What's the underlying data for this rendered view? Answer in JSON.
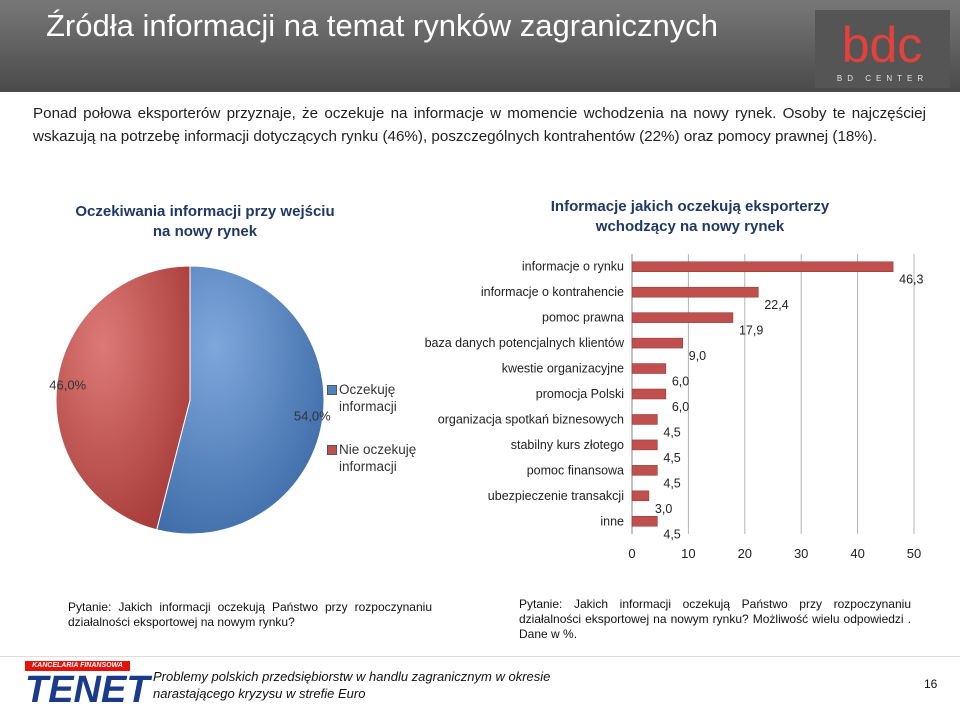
{
  "title": "Źródła informacji na temat rynków zagranicznych",
  "logo": {
    "main": "bdc",
    "sub": "BD CENTER"
  },
  "intro": "Ponad połowa eksporterów przyznaje, że oczekuje na informacje w momencie wchodzenia na nowy rynek. Osoby te najczęściej wskazują na potrzebę informacji dotyczących rynku (46%), poszczególnych kontrahentów (22%) oraz pomocy prawnej (18%).",
  "chart_data": [
    {
      "type": "pie",
      "title": "Oczekiwania informacji przy wejściu na nowy rynek",
      "title_lines": [
        "Oczekiwania informacji przy wejściu",
        "na nowy rynek"
      ],
      "categories": [
        "Oczekuję informacji",
        "Nie oczekuję informacji"
      ],
      "legend_lines": [
        [
          "Oczekuję",
          "informacji"
        ],
        [
          "Nie oczekuję",
          "informacji"
        ]
      ],
      "values": [
        54.0,
        46.0
      ],
      "labels": [
        "54,0%",
        "46,0%"
      ],
      "colors": [
        "#4f81bd",
        "#c0504d"
      ],
      "legend": "right"
    },
    {
      "type": "bar",
      "orientation": "horizontal",
      "title": "Informacje jakich oczekują eksporterzy wchodzący na nowy rynek",
      "title_lines": [
        "Informacje jakich oczekują eksporterzy",
        "wchodzący na nowy rynek"
      ],
      "categories": [
        "informacje o rynku",
        "informacje o kontrahencie",
        "pomoc prawna",
        "baza danych potencjalnych klientów",
        "kwestie organizacyjne",
        "promocja Polski",
        "organizacja spotkań biznesowych",
        "stabilny kurs złotego",
        "pomoc finansowa",
        "ubezpieczenie transakcji",
        "inne"
      ],
      "values": [
        46.3,
        22.4,
        17.9,
        9.0,
        6.0,
        6.0,
        4.5,
        4.5,
        4.5,
        3.0,
        4.5
      ],
      "labels": [
        "46,3",
        "22,4",
        "17,9",
        "9,0",
        "6,0",
        "6,0",
        "4,5",
        "4,5",
        "4,5",
        "3,0",
        "4,5"
      ],
      "xlim": [
        0,
        50
      ],
      "xticks": [
        "0",
        "10",
        "20",
        "30",
        "40",
        "50"
      ],
      "bar_color": "#c0504d",
      "grid": true
    }
  ],
  "questions": {
    "left": "Pytanie: Jakich informacji oczekują Państwo przy rozpoczynaniu działalności eksportowej na nowym rynku?",
    "right": "Pytanie: Jakich informacji oczekują Państwo przy rozpoczynaniu działalności eksportowej na nowym rynku? Możliwość wielu odpowiedzi . Dane w %."
  },
  "footer": {
    "brand_top": "KANCELARIA FINANSOWA",
    "brand": "TENET",
    "text_lines": [
      "Problemy polskich przedsiębiorstw w handlu zagranicznym  w okresie",
      "narastającego kryzysu w strefie Euro"
    ],
    "page": "16"
  }
}
